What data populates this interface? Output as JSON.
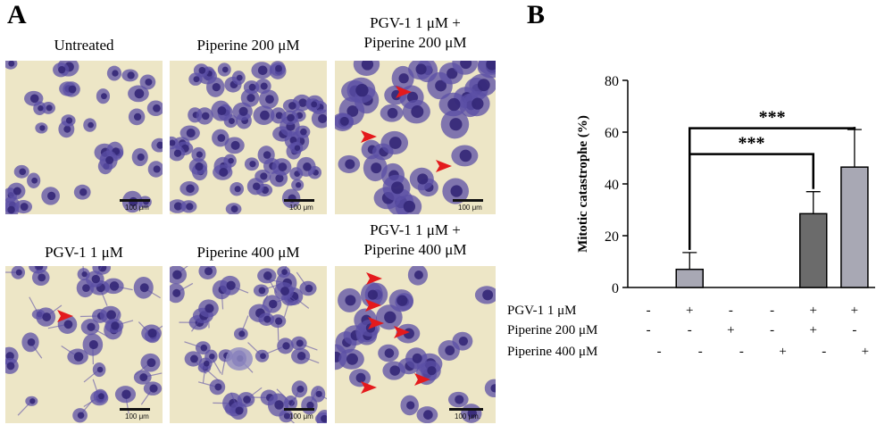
{
  "panel_a": {
    "letter": "A",
    "images": [
      {
        "caption": "Untreated",
        "scale_label": "100 μm"
      },
      {
        "caption": "Piperine 200 μM",
        "scale_label": "100 μm"
      },
      {
        "caption": "PGV-1 1 μM +\nPiperine 200 μM",
        "scale_label": "100 μm"
      },
      {
        "caption": "PGV-1 1 μM",
        "scale_label": "100 μm"
      },
      {
        "caption": "Piperine 400 μM",
        "scale_label": "100 μm"
      },
      {
        "caption": "PGV-1 1 μM +\nPiperine 400 μM",
        "scale_label": "100 μm."
      }
    ],
    "colors": {
      "background": "#ede6c6",
      "cell": "#5b4fa6",
      "nucleus": "#332777",
      "arrow": "#e41a1c"
    }
  },
  "panel_b": {
    "letter": "B"
  },
  "chart_data": {
    "type": "bar",
    "ylabel": "Mitotic catastrophe (%)",
    "xlabel": "",
    "ylim": [
      0,
      80
    ],
    "yticks": [
      0,
      20,
      40,
      60,
      80
    ],
    "grid": false,
    "legend": "none",
    "values": [
      0,
      7,
      0,
      0,
      28.5,
      46.5
    ],
    "errors": [
      0,
      6.5,
      0,
      0,
      8.5,
      14.5
    ],
    "bar_colors": [
      "#ffffff",
      "#a8a8b4",
      "#ffffff",
      "#ffffff",
      "#6b6b6b",
      "#a8a8b4"
    ],
    "treatment_rows": [
      {
        "label": "PGV-1 1 μM",
        "signs": [
          "-",
          "+",
          "-",
          "-",
          "+",
          "+"
        ]
      },
      {
        "label": "Piperine 200 μM",
        "signs": [
          "-",
          "-",
          "+",
          "-",
          "+",
          "-"
        ]
      },
      {
        "label": "Piperine 400 μM",
        "signs": [
          "-",
          "-",
          "-",
          "+",
          "-",
          "+"
        ]
      }
    ],
    "significance": [
      {
        "from": 1,
        "to": 5,
        "label": "***"
      },
      {
        "from": 1,
        "to": 4,
        "label": "***"
      }
    ]
  }
}
